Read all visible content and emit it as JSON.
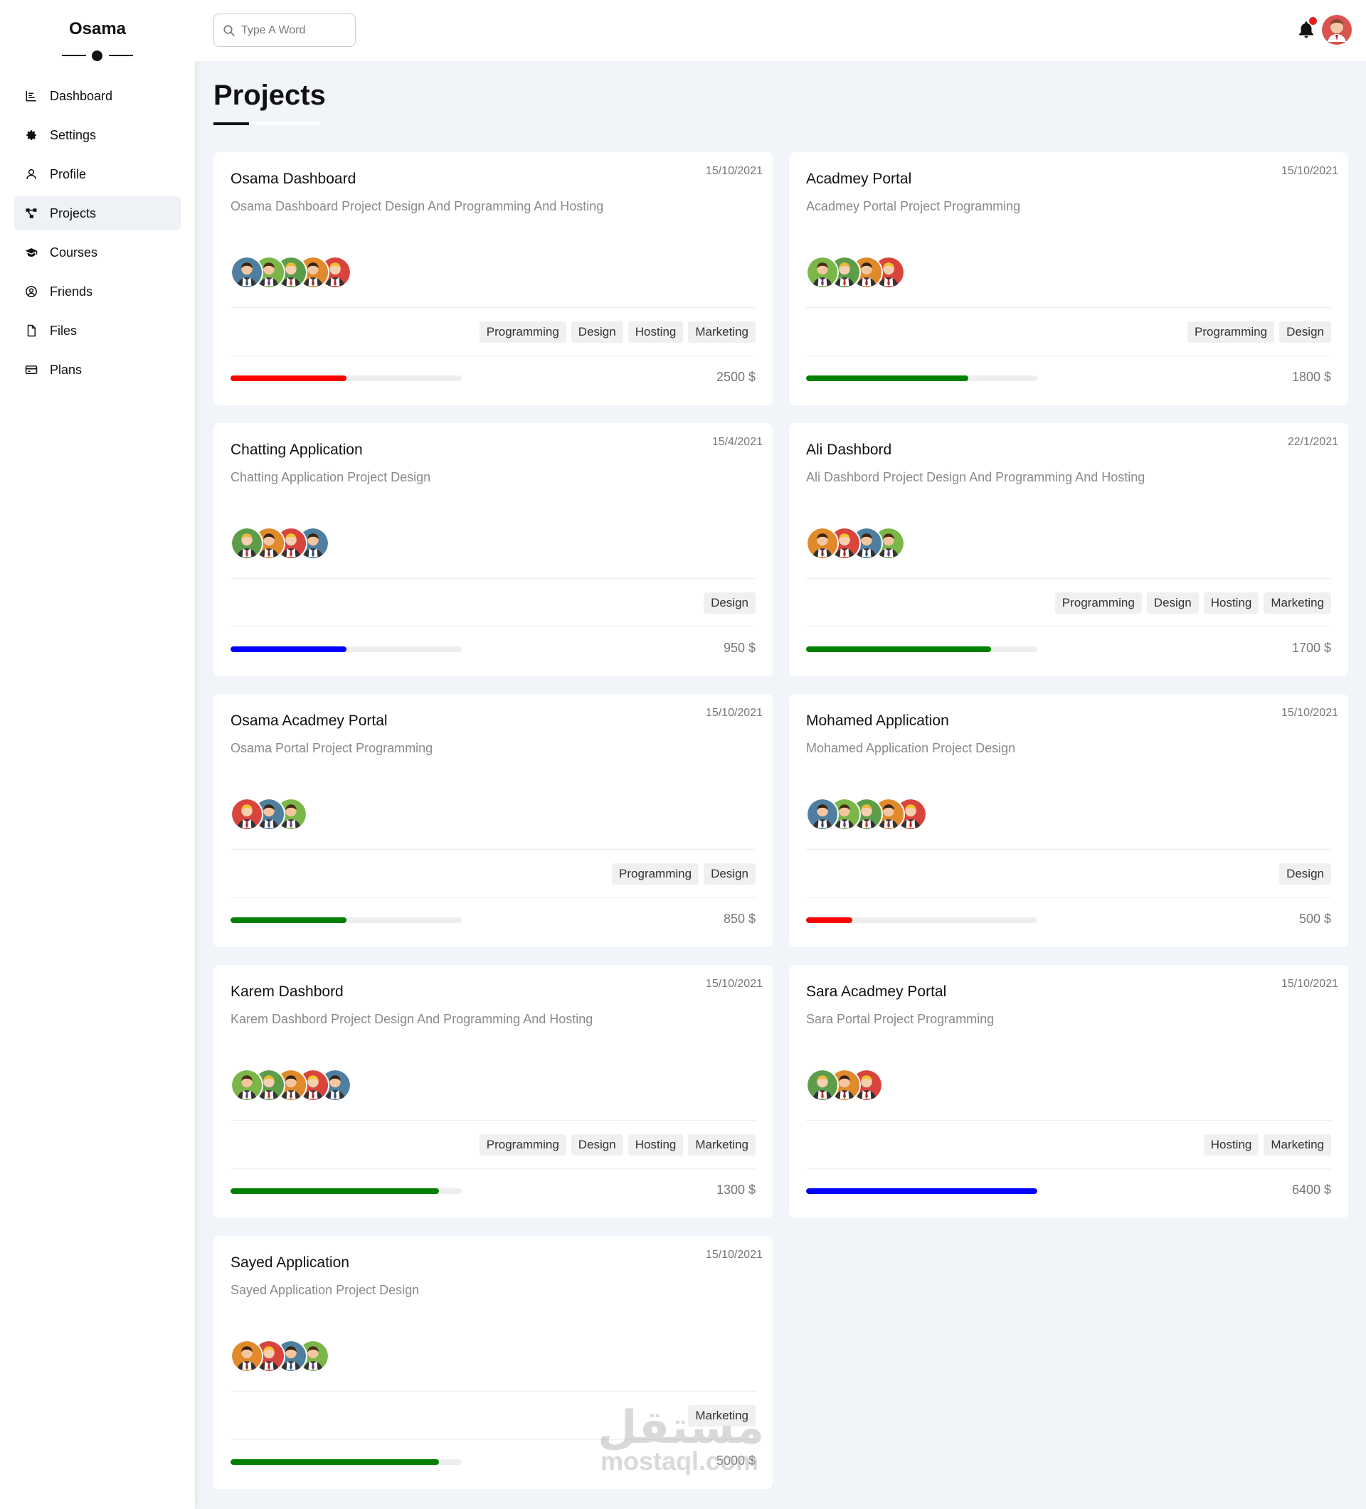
{
  "brand": "Osama",
  "sidebar": {
    "items": [
      {
        "label": "Dashboard",
        "icon": "chart-icon"
      },
      {
        "label": "Settings",
        "icon": "gear-icon"
      },
      {
        "label": "Profile",
        "icon": "user-icon"
      },
      {
        "label": "Projects",
        "icon": "diagram-project-icon",
        "active": true
      },
      {
        "label": "Courses",
        "icon": "graduation-cap-icon"
      },
      {
        "label": "Friends",
        "icon": "user-circle-icon"
      },
      {
        "label": "Files",
        "icon": "file-icon"
      },
      {
        "label": "Plans",
        "icon": "credit-card-icon"
      }
    ]
  },
  "search": {
    "placeholder": "Type A Word"
  },
  "page": {
    "title": "Projects"
  },
  "colors": {
    "red": "#ff0000",
    "green": "#008000",
    "blue": "#0000ff"
  },
  "projects": [
    {
      "title": "Osama Dashboard",
      "desc": "Osama Dashboard Project Design And Programming And Hosting",
      "date": "15/10/2021",
      "avatars": 5,
      "tags": [
        "Programming",
        "Design",
        "Hosting",
        "Marketing"
      ],
      "progress": 0.5,
      "color": "#ff0000",
      "price": "2500 $"
    },
    {
      "title": "Acadmey Portal",
      "desc": "Acadmey Portal Project Programming",
      "date": "15/10/2021",
      "avatars": 4,
      "tags": [
        "Programming",
        "Design"
      ],
      "progress": 0.7,
      "color": "#008000",
      "price": "1800 $"
    },
    {
      "title": "Chatting Application",
      "desc": "Chatting Application Project Design",
      "date": "15/4/2021",
      "avatars": 4,
      "tags": [
        "Design"
      ],
      "progress": 0.5,
      "color": "#0000ff",
      "price": "950 $"
    },
    {
      "title": "Ali Dashbord",
      "desc": "Ali Dashbord Project Design And Programming And Hosting",
      "date": "22/1/2021",
      "avatars": 4,
      "tags": [
        "Programming",
        "Design",
        "Hosting",
        "Marketing"
      ],
      "progress": 0.8,
      "color": "#008000",
      "price": "1700 $"
    },
    {
      "title": "Osama Acadmey Portal",
      "desc": "Osama Portal Project Programming",
      "date": "15/10/2021",
      "avatars": 3,
      "tags": [
        "Programming",
        "Design"
      ],
      "progress": 0.5,
      "color": "#008000",
      "price": "850 $"
    },
    {
      "title": "Mohamed Application",
      "desc": "Mohamed Application Project Design",
      "date": "15/10/2021",
      "avatars": 5,
      "tags": [
        "Design"
      ],
      "progress": 0.2,
      "color": "#ff0000",
      "price": "500 $"
    },
    {
      "title": "Karem Dashbord",
      "desc": "Karem Dashbord Project Design And Programming And Hosting",
      "date": "15/10/2021",
      "avatars": 5,
      "tags": [
        "Programming",
        "Design",
        "Hosting",
        "Marketing"
      ],
      "progress": 0.9,
      "color": "#008000",
      "price": "1300 $"
    },
    {
      "title": "Sara Acadmey Portal",
      "desc": "Sara Portal Project Programming",
      "date": "15/10/2021",
      "avatars": 3,
      "tags": [
        "Hosting",
        "Marketing"
      ],
      "progress": 1.0,
      "color": "#0000ff",
      "price": "6400 $"
    },
    {
      "title": "Sayed Application",
      "desc": "Sayed Application Project Design",
      "date": "15/10/2021",
      "avatars": 4,
      "tags": [
        "Marketing"
      ],
      "progress": 0.9,
      "color": "#008000",
      "price": "5000 $"
    }
  ],
  "watermark": {
    "arabic": "مستقل",
    "latin": "mostaql.com"
  }
}
